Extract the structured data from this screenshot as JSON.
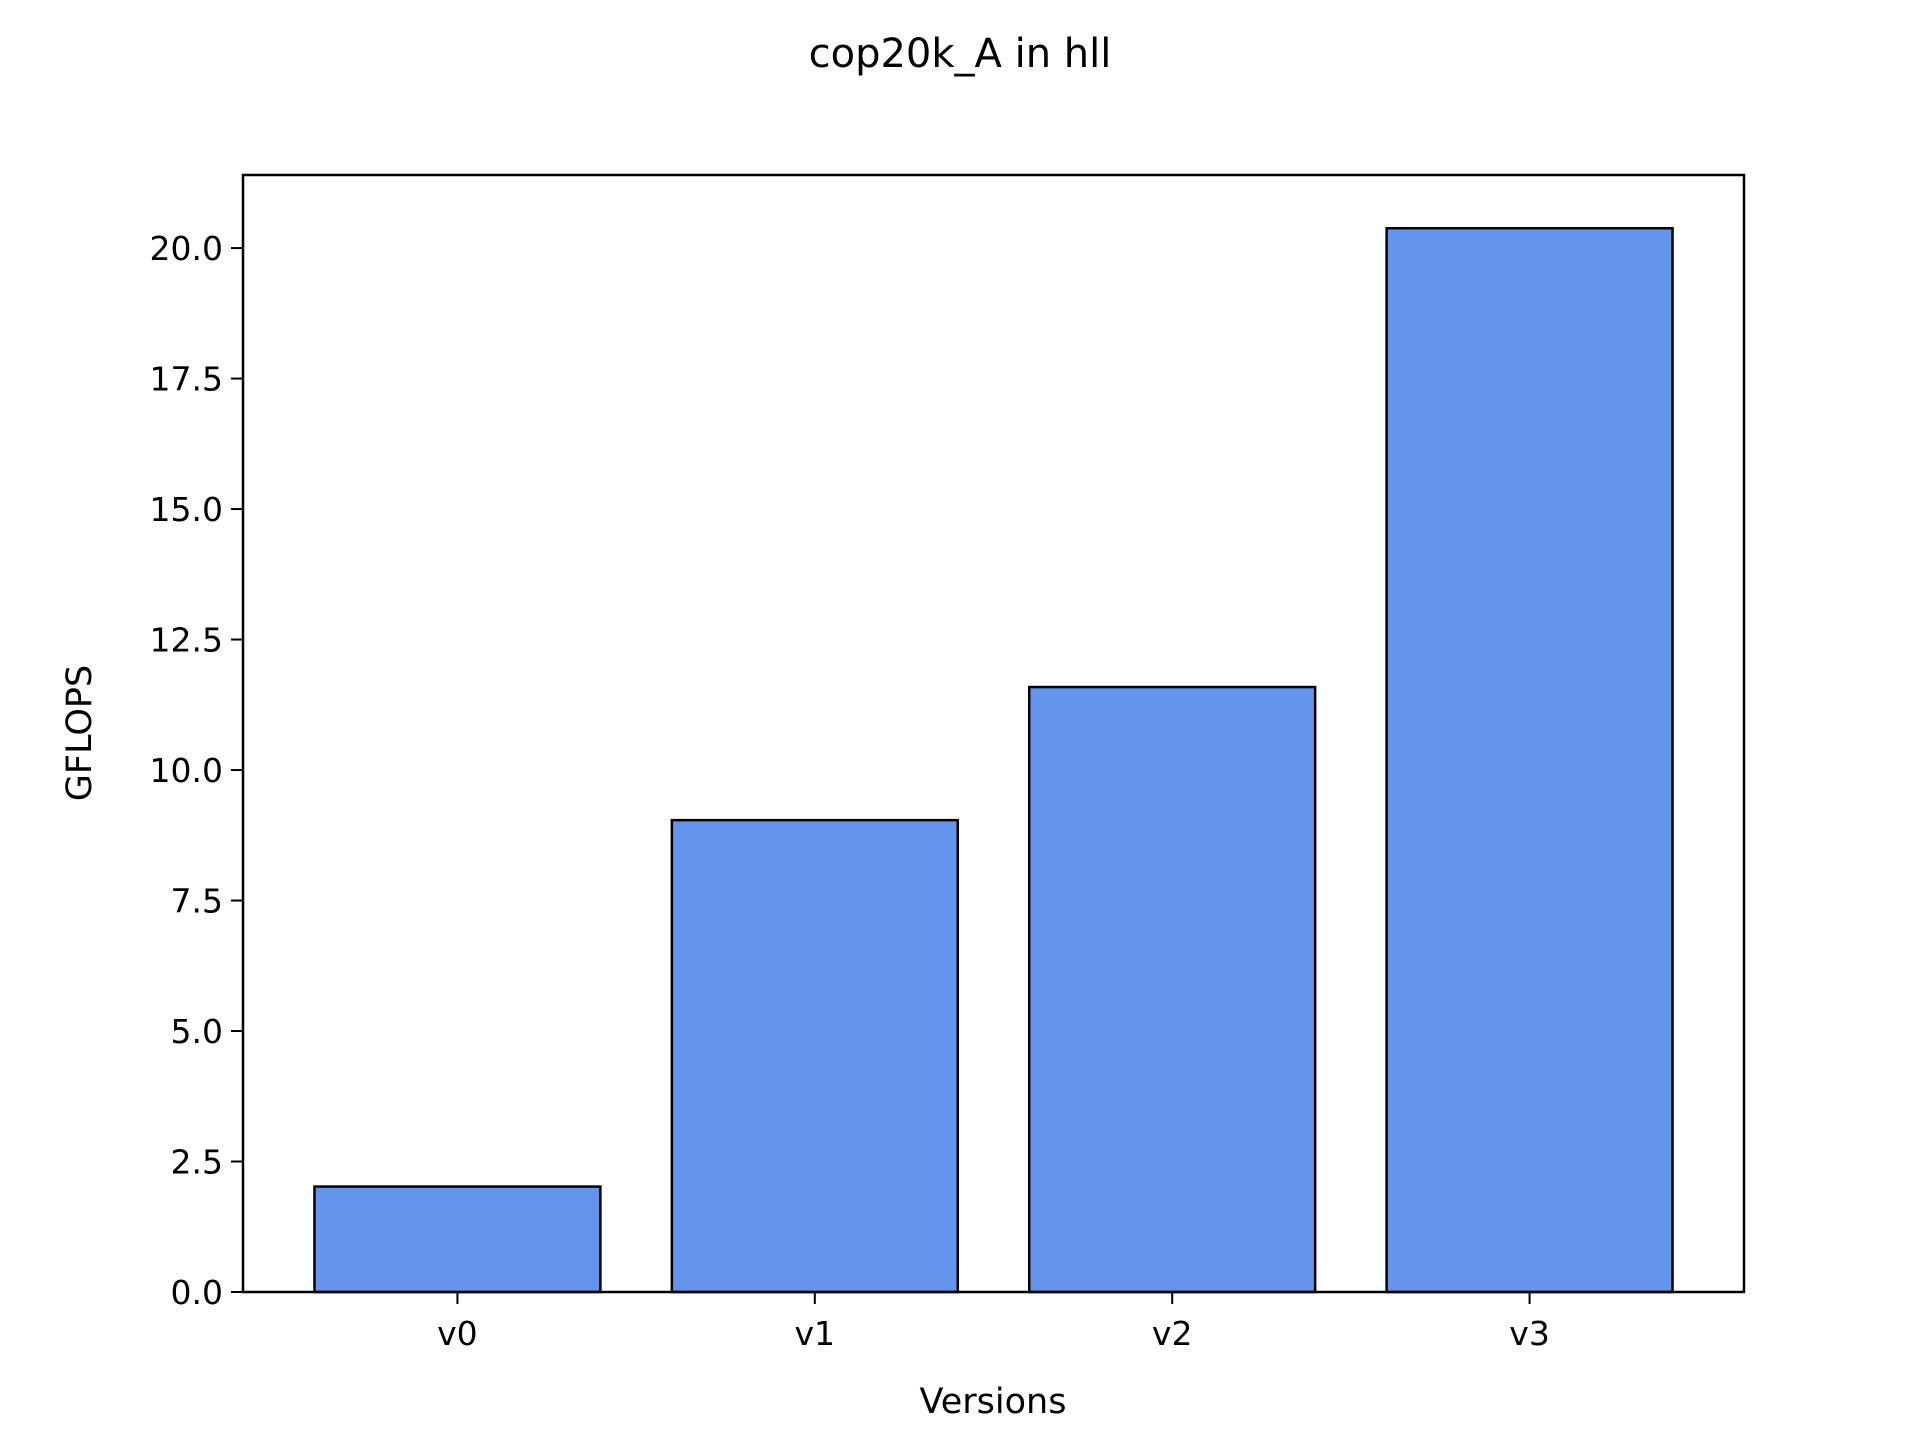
{
  "chart_data": {
    "type": "bar",
    "title": "cop20k_A in hll",
    "xlabel": "Versions",
    "ylabel": "GFLOPS",
    "categories": [
      "v0",
      "v1",
      "v2",
      "v3"
    ],
    "values": [
      2.02,
      9.04,
      11.59,
      20.38
    ],
    "ylim": [
      0,
      21.4
    ],
    "yticks": [
      "0.0",
      "2.5",
      "5.0",
      "7.5",
      "10.0",
      "12.5",
      "15.0",
      "17.5",
      "20.0"
    ],
    "grid": false,
    "legend": "none",
    "bar_color": "#6495ED",
    "edge_color": "#000000"
  }
}
